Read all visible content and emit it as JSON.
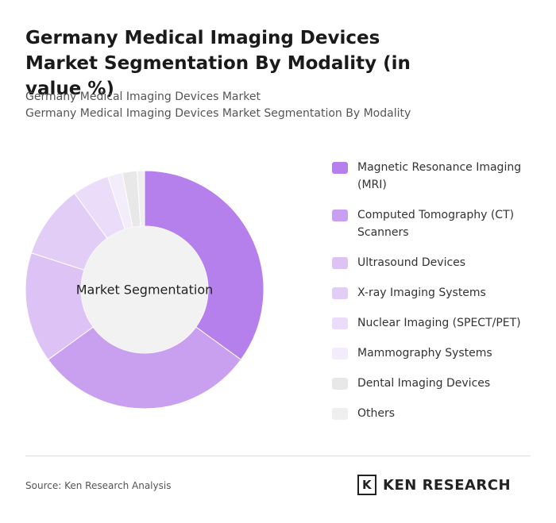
{
  "chart_data": {
    "type": "donut",
    "title": "Germany Medical Imaging Devices Market Segmentation By Modality (in value %)",
    "subtitle": [
      "Germany Medical Imaging Devices Market",
      "Germany Medical Imaging Devices Market Segmentation By Modality"
    ],
    "center_label": "Market Segmentation",
    "categories": [
      "Magnetic Resonance Imaging (MRI)",
      "Computed Tomography (CT) Scanners",
      "Ultrasound Devices",
      "X-ray Imaging Systems",
      "Nuclear Imaging (SPECT/PET)",
      "Mammography Systems",
      "Dental Imaging Devices",
      "Others"
    ],
    "values": [
      35,
      30,
      15,
      10,
      5,
      2,
      2,
      1
    ],
    "colors": [
      "#b57fec",
      "#c9a0f0",
      "#dcc2f5",
      "#e2cdf7",
      "#ebdcf9",
      "#f3ecfb",
      "#e8e8e8",
      "#efefef"
    ],
    "source": "Source: Ken Research Analysis",
    "logo": "KEN RESEARCH"
  }
}
